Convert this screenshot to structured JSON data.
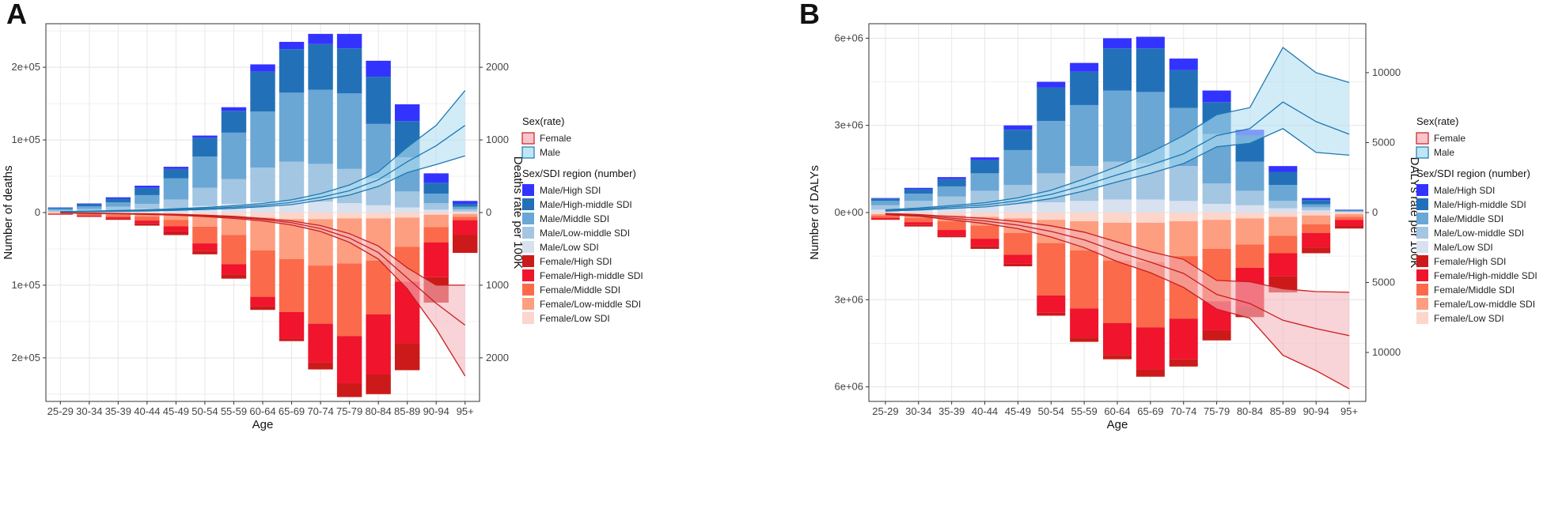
{
  "chart_data": [
    {
      "type": "bar",
      "panel_label": "A",
      "categories": [
        "25-29",
        "30-34",
        "35-39",
        "40-44",
        "45-49",
        "50-54",
        "55-59",
        "60-64",
        "65-69",
        "70-74",
        "75-79",
        "80-84",
        "85-89",
        "90-94",
        "95+"
      ],
      "xlabel": "Age",
      "ylabel": "Number of deaths",
      "y2label": "Deaths rate per 100K",
      "ylim": [
        -260000,
        260000
      ],
      "y2lim": [
        -2600,
        2600
      ],
      "y_ticks": [
        {
          "value": 200000,
          "label": "2e+05"
        },
        {
          "value": 100000,
          "label": "1e+05"
        },
        {
          "value": 0,
          "label": "0"
        },
        {
          "value": -100000,
          "label": "1e+05"
        },
        {
          "value": -200000,
          "label": "2e+05"
        }
      ],
      "y2_ticks": [
        {
          "value": 2000,
          "label": "2000"
        },
        {
          "value": 1000,
          "label": "1000"
        },
        {
          "value": 0,
          "label": "0"
        },
        {
          "value": -1000,
          "label": "1000"
        },
        {
          "value": -2000,
          "label": "2000"
        }
      ],
      "male_series": [
        {
          "name": "Male/Low SDI",
          "color": "#d8e1ef",
          "values": [
            1000,
            2000,
            3000,
            5000,
            6000,
            9000,
            12000,
            14000,
            15000,
            15000,
            13000,
            10000,
            7000,
            4000,
            1500
          ]
        },
        {
          "name": "Male/Low-middle SDI",
          "color": "#a3c6e2",
          "values": [
            2000,
            3000,
            5000,
            7000,
            12000,
            25000,
            34000,
            48000,
            55000,
            52000,
            47000,
            37000,
            22000,
            9000,
            3000
          ]
        },
        {
          "name": "Male/Middle SDI",
          "color": "#6aa7d5",
          "values": [
            2000,
            3500,
            6000,
            12000,
            29000,
            43000,
            64000,
            77000,
            95000,
            102000,
            104000,
            75000,
            47000,
            13000,
            3500
          ]
        },
        {
          "name": "Male/High-middle SDI",
          "color": "#2271b8",
          "values": [
            1500,
            3000,
            5000,
            10000,
            13000,
            26000,
            30000,
            55000,
            60000,
            63000,
            62000,
            65000,
            50000,
            15000,
            4000
          ]
        },
        {
          "name": "Male/High SDI",
          "color": "#3333ff",
          "values": [
            500,
            1000,
            2000,
            3000,
            3000,
            3000,
            5000,
            10000,
            10000,
            14000,
            20000,
            22000,
            23000,
            13000,
            4000
          ]
        }
      ],
      "female_series": [
        {
          "name": "Female/Low SDI",
          "color": "#fcd5cb",
          "values": [
            500,
            1000,
            1500,
            2000,
            3000,
            4500,
            6000,
            7000,
            9000,
            9000,
            8000,
            8000,
            7000,
            3000,
            2000
          ]
        },
        {
          "name": "Female/Low-middle SDI",
          "color": "#fd9e80",
          "values": [
            500,
            1000,
            2000,
            3500,
            7000,
            15000,
            25000,
            45000,
            55000,
            64000,
            62000,
            58000,
            40000,
            17000,
            4000
          ]
        },
        {
          "name": "Female/Middle SDI",
          "color": "#fb6a4a",
          "values": [
            1000,
            2000,
            3000,
            5500,
            9000,
            23000,
            40000,
            64000,
            73000,
            80000,
            100000,
            74000,
            48000,
            21000,
            4500
          ]
        },
        {
          "name": "Female/High-middle SDI",
          "color": "#f0142c",
          "values": [
            500,
            1000,
            2000,
            4000,
            7000,
            10000,
            14000,
            13000,
            37000,
            53000,
            65000,
            83000,
            85000,
            48000,
            20000
          ]
        },
        {
          "name": "Female/High SDI",
          "color": "#cc1a1a",
          "values": [
            500,
            1000,
            1500,
            3000,
            5000,
            5000,
            6000,
            5000,
            3000,
            10000,
            19000,
            27000,
            37000,
            35000,
            25000
          ]
        }
      ],
      "rate_bands": [
        {
          "name": "Male",
          "color": "#1f78b4",
          "fill": "#b3e0f2",
          "mean": [
            10,
            15,
            22,
            30,
            40,
            55,
            75,
            100,
            140,
            210,
            300,
            450,
            700,
            920,
            1200
          ],
          "lower": [
            7,
            11,
            16,
            22,
            30,
            42,
            58,
            80,
            110,
            170,
            240,
            360,
            550,
            660,
            780
          ],
          "upper": [
            13,
            19,
            28,
            38,
            52,
            70,
            95,
            125,
            175,
            260,
            380,
            560,
            900,
            1200,
            1680
          ]
        },
        {
          "name": "Female",
          "color": "#c81e1e",
          "fill": "#f4b6bd",
          "mean": [
            -5,
            -10,
            -15,
            -20,
            -30,
            -45,
            -65,
            -95,
            -140,
            -220,
            -350,
            -550,
            -900,
            -1250,
            -1550
          ],
          "lower": [
            -6,
            -12,
            -18,
            -25,
            -36,
            -55,
            -80,
            -115,
            -170,
            -260,
            -410,
            -640,
            -1050,
            -1600,
            -2250
          ],
          "upper": [
            -4,
            -8,
            -12,
            -16,
            -24,
            -36,
            -52,
            -80,
            -115,
            -180,
            -290,
            -460,
            -760,
            -1000,
            -1000
          ]
        }
      ],
      "legend": {
        "rate_title": "Sex(rate)",
        "rate_items": [
          {
            "name": "Female",
            "fill": "#f8c5cb",
            "stroke": "#c81e1e"
          },
          {
            "name": "Male",
            "fill": "#bfe6f5",
            "stroke": "#1f78b4"
          }
        ],
        "number_title": "Sex/SDI region (number)",
        "number_items": [
          {
            "name": "Male/High SDI",
            "color": "#3333ff"
          },
          {
            "name": "Male/High-middle SDI",
            "color": "#2271b8"
          },
          {
            "name": "Male/Middle SDI",
            "color": "#6aa7d5"
          },
          {
            "name": "Male/Low-middle SDI",
            "color": "#a3c6e2"
          },
          {
            "name": "Male/Low SDI",
            "color": "#d8e1ef"
          },
          {
            "name": "Female/High SDI",
            "color": "#cc1a1a"
          },
          {
            "name": "Female/High-middle SDI",
            "color": "#f0142c"
          },
          {
            "name": "Female/Middle SDI",
            "color": "#fb6a4a"
          },
          {
            "name": "Female/Low-middle SDI",
            "color": "#fd9e80"
          },
          {
            "name": "Female/Low SDI",
            "color": "#fcd5cb"
          }
        ]
      }
    },
    {
      "type": "bar",
      "panel_label": "B",
      "categories": [
        "25-29",
        "30-34",
        "35-39",
        "40-44",
        "45-49",
        "50-54",
        "55-59",
        "60-64",
        "65-69",
        "70-74",
        "75-79",
        "80-84",
        "85-89",
        "90-94",
        "95+"
      ],
      "xlabel": "Age",
      "ylabel": "Number of DALYs",
      "y2label": "DALYs rate per 100K",
      "ylim": [
        -6500000,
        6500000
      ],
      "y2lim": [
        -13500,
        13500
      ],
      "y_ticks": [
        {
          "value": 6000000,
          "label": "6e+06"
        },
        {
          "value": 3000000,
          "label": "3e+06"
        },
        {
          "value": 0,
          "label": "0e+00"
        },
        {
          "value": -3000000,
          "label": "3e+06"
        },
        {
          "value": -6000000,
          "label": "6e+06"
        }
      ],
      "y2_ticks": [
        {
          "value": 10000,
          "label": "10000"
        },
        {
          "value": 5000,
          "label": "5000"
        },
        {
          "value": 0,
          "label": "0"
        },
        {
          "value": -5000,
          "label": "5000"
        },
        {
          "value": -10000,
          "label": "10000"
        }
      ],
      "male_series": [
        {
          "name": "Male/Low SDI",
          "color": "#d8e1ef",
          "values": [
            100000,
            150000,
            200000,
            250000,
            300000,
            350000,
            400000,
            450000,
            450000,
            400000,
            300000,
            250000,
            150000,
            80000,
            20000
          ]
        },
        {
          "name": "Male/Low-middle SDI",
          "color": "#a3c6e2",
          "values": [
            150000,
            250000,
            350000,
            500000,
            650000,
            1000000,
            1200000,
            1300000,
            1250000,
            1200000,
            700000,
            500000,
            250000,
            100000,
            20000
          ]
        },
        {
          "name": "Male/Middle SDI",
          "color": "#6aa7d5",
          "values": [
            150000,
            250000,
            350000,
            600000,
            1200000,
            1800000,
            2100000,
            2450000,
            2450000,
            2000000,
            1700000,
            1000000,
            550000,
            100000,
            20000
          ]
        },
        {
          "name": "Male/High-middle SDI",
          "color": "#2271b8",
          "values": [
            80000,
            150000,
            250000,
            450000,
            700000,
            1150000,
            1150000,
            1450000,
            1500000,
            1300000,
            1100000,
            900000,
            450000,
            150000,
            30000
          ]
        },
        {
          "name": "Male/High SDI",
          "color": "#3333ff",
          "values": [
            20000,
            50000,
            70000,
            100000,
            150000,
            200000,
            300000,
            350000,
            400000,
            400000,
            400000,
            200000,
            200000,
            70000,
            10000
          ]
        }
      ],
      "female_series": [
        {
          "name": "Female/Low SDI",
          "color": "#fcd5cb",
          "values": [
            50000,
            80000,
            100000,
            150000,
            200000,
            250000,
            300000,
            350000,
            350000,
            300000,
            250000,
            200000,
            150000,
            100000,
            50000
          ]
        },
        {
          "name": "Female/Low-middle SDI",
          "color": "#fd9e80",
          "values": [
            50000,
            100000,
            200000,
            300000,
            500000,
            800000,
            1000000,
            1300000,
            1350000,
            1200000,
            1000000,
            900000,
            650000,
            300000,
            100000
          ]
        },
        {
          "name": "Female/Middle SDI",
          "color": "#fb6a4a",
          "values": [
            80000,
            150000,
            300000,
            450000,
            750000,
            1800000,
            2000000,
            2150000,
            2250000,
            2150000,
            1800000,
            800000,
            600000,
            300000,
            100000
          ]
        },
        {
          "name": "Female/High-middle SDI",
          "color": "#f0142c",
          "values": [
            50000,
            100000,
            200000,
            250000,
            300000,
            600000,
            1000000,
            1100000,
            1450000,
            1400000,
            1000000,
            1350000,
            800000,
            500000,
            200000
          ]
        },
        {
          "name": "Female/High SDI",
          "color": "#cc1a1a",
          "values": [
            20000,
            50000,
            50000,
            100000,
            100000,
            100000,
            150000,
            150000,
            250000,
            250000,
            350000,
            350000,
            550000,
            200000,
            100000
          ]
        }
      ],
      "rate_bands": [
        {
          "name": "Male",
          "color": "#1f78b4",
          "fill": "#b3e0f2",
          "mean": [
            150,
            250,
            400,
            550,
            850,
            1300,
            1950,
            2700,
            3400,
            4200,
            5500,
            6000,
            7900,
            6500,
            5600
          ],
          "lower": [
            100,
            180,
            300,
            400,
            650,
            1000,
            1550,
            2200,
            2800,
            3500,
            4700,
            4950,
            6000,
            4300,
            4100
          ],
          "upper": [
            200,
            320,
            500,
            700,
            1050,
            1600,
            2400,
            3300,
            4300,
            5500,
            7000,
            7500,
            11800,
            10000,
            9300
          ]
        },
        {
          "name": "Female",
          "color": "#c81e1e",
          "fill": "#f4b6bd",
          "mean": [
            -100,
            -200,
            -400,
            -600,
            -900,
            -1350,
            -1950,
            -2800,
            -3550,
            -4350,
            -5850,
            -6500,
            -7700,
            -8300,
            -8800
          ],
          "lower": [
            -150,
            -260,
            -520,
            -780,
            -1150,
            -1750,
            -2500,
            -3500,
            -4300,
            -5350,
            -6900,
            -7550,
            -10200,
            -11300,
            -12600
          ],
          "upper": [
            -60,
            -140,
            -280,
            -420,
            -650,
            -950,
            -1400,
            -2100,
            -2800,
            -3350,
            -4850,
            -4950,
            -5450,
            -5650,
            -5700
          ]
        }
      ],
      "legend": {
        "rate_title": "Sex(rate)",
        "rate_items": [
          {
            "name": "Female",
            "fill": "#f8c5cb",
            "stroke": "#c81e1e"
          },
          {
            "name": "Male",
            "fill": "#bfe6f5",
            "stroke": "#1f78b4"
          }
        ],
        "number_title": "Sex/SDI region (number)",
        "number_items": [
          {
            "name": "Male/High SDI",
            "color": "#3333ff"
          },
          {
            "name": "Male/High-middle SDI",
            "color": "#2271b8"
          },
          {
            "name": "Male/Middle SDI",
            "color": "#6aa7d5"
          },
          {
            "name": "Male/Low-middle SDI",
            "color": "#a3c6e2"
          },
          {
            "name": "Male/Low SDI",
            "color": "#d8e1ef"
          },
          {
            "name": "Female/High SDI",
            "color": "#cc1a1a"
          },
          {
            "name": "Female/High-middle SDI",
            "color": "#f0142c"
          },
          {
            "name": "Female/Middle SDI",
            "color": "#fb6a4a"
          },
          {
            "name": "Female/Low-middle SDI",
            "color": "#fd9e80"
          },
          {
            "name": "Female/Low SDI",
            "color": "#fcd5cb"
          }
        ]
      }
    }
  ]
}
